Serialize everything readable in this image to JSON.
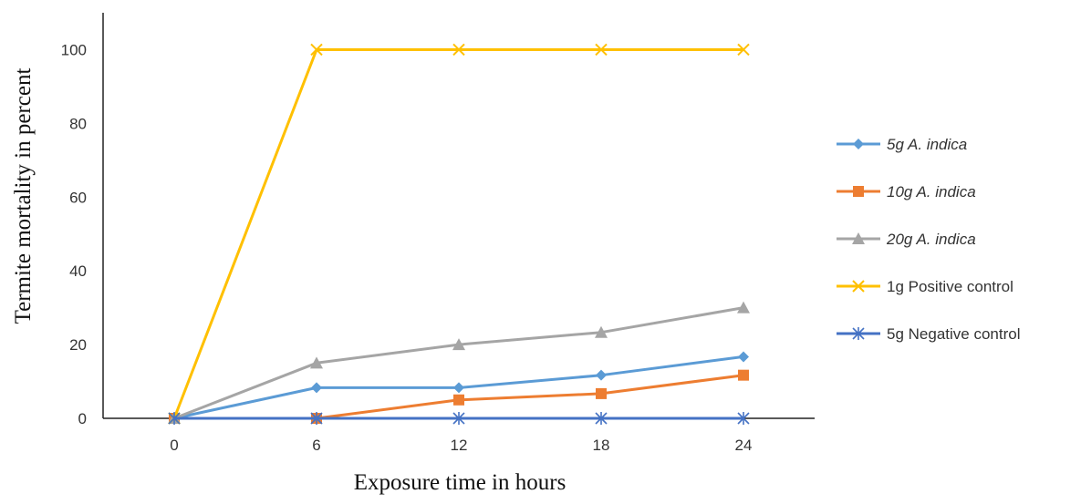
{
  "chart_data": {
    "type": "line",
    "title": "",
    "xlabel": "Exposure time in hours",
    "ylabel": "Termite mortality in percent",
    "x": [
      0,
      6,
      12,
      18,
      24
    ],
    "xlim": [
      -3,
      27
    ],
    "ylim": [
      0,
      110
    ],
    "yticks": [
      0,
      20,
      40,
      60,
      80,
      100
    ],
    "grid": false,
    "legend_position": "right",
    "series": [
      {
        "name": "5g A. indica",
        "italic": true,
        "color": "#5b9bd5",
        "marker": "diamond",
        "values": [
          0,
          8.3,
          8.3,
          11.7,
          16.7
        ]
      },
      {
        "name": "10g A. indica",
        "italic": true,
        "color": "#ed7d31",
        "marker": "square",
        "values": [
          0,
          0,
          5,
          6.7,
          11.7
        ]
      },
      {
        "name": "20g A. indica",
        "italic": true,
        "color": "#a5a5a5",
        "marker": "triangle",
        "values": [
          0,
          15,
          20,
          23.3,
          30
        ]
      },
      {
        "name": "1g Positive control",
        "italic": false,
        "color": "#ffc000",
        "marker": "x",
        "values": [
          0,
          100,
          100,
          100,
          100
        ]
      },
      {
        "name": "5g Negative control",
        "italic": false,
        "color": "#4472c4",
        "marker": "star",
        "values": [
          0,
          0,
          0,
          0,
          0
        ]
      }
    ]
  }
}
